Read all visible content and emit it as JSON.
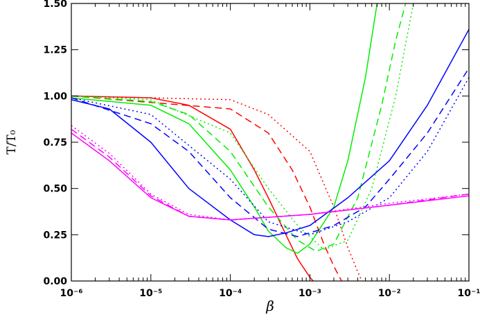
{
  "chart_data": {
    "type": "line",
    "x_label": "β",
    "y_label": "T/T₀",
    "xscale": "log",
    "xlim": [
      1e-06,
      0.1
    ],
    "ylim": [
      0,
      1.5
    ],
    "xticks": [
      {
        "value": 1e-06,
        "label": "10⁻⁶"
      },
      {
        "value": 1e-05,
        "label": "10⁻⁵"
      },
      {
        "value": 0.0001,
        "label": "10⁻⁴"
      },
      {
        "value": 0.001,
        "label": "10⁻³"
      },
      {
        "value": 0.01,
        "label": "10⁻²"
      },
      {
        "value": 0.1,
        "label": "10⁻¹"
      }
    ],
    "yticks": [
      {
        "value": 0,
        "label": "0.00"
      },
      {
        "value": 0.25,
        "label": "0.25"
      },
      {
        "value": 0.5,
        "label": "0.50"
      },
      {
        "value": 0.75,
        "label": "0.75"
      },
      {
        "value": 1,
        "label": "1.00"
      },
      {
        "value": 1.25,
        "label": "1.25"
      },
      {
        "value": 1.5,
        "label": "1.50"
      }
    ],
    "series": [
      {
        "color": "#ff0000",
        "dash": "solid",
        "x": [
          1e-06,
          1e-05,
          3e-05,
          0.0001,
          0.0002,
          0.0003,
          0.0005,
          0.0007,
          0.001,
          0.0011
        ],
        "values": [
          1.0,
          0.99,
          0.95,
          0.82,
          0.6,
          0.45,
          0.25,
          0.12,
          0.02,
          0
        ]
      },
      {
        "color": "#ff0000",
        "dash": "dashed",
        "x": [
          1e-06,
          0.0001,
          0.0003,
          0.0006,
          0.001,
          0.0015,
          0.002,
          0.0025
        ],
        "values": [
          1.0,
          0.93,
          0.8,
          0.6,
          0.4,
          0.2,
          0.08,
          0
        ]
      },
      {
        "color": "#ff0000",
        "dash": "dotted",
        "x": [
          1e-06,
          0.0001,
          0.0003,
          0.001,
          0.002,
          0.003,
          0.004,
          0.0045
        ],
        "values": [
          1.0,
          0.98,
          0.9,
          0.7,
          0.4,
          0.18,
          0.05,
          0
        ]
      },
      {
        "color": "#00ee00",
        "dash": "solid",
        "x": [
          1e-06,
          1e-05,
          3e-05,
          0.0001,
          0.0002,
          0.0003,
          0.0005,
          0.0007,
          0.001,
          0.002,
          0.003,
          0.005,
          0.007
        ],
        "values": [
          0.99,
          0.95,
          0.85,
          0.6,
          0.4,
          0.27,
          0.18,
          0.15,
          0.2,
          0.4,
          0.65,
          1.1,
          1.5
        ]
      },
      {
        "color": "#00ee00",
        "dash": "dashed",
        "x": [
          1e-06,
          1e-05,
          3e-05,
          0.0001,
          0.0003,
          0.0007,
          0.0012,
          0.002,
          0.004,
          0.008,
          0.012,
          0.016
        ],
        "values": [
          1.0,
          0.97,
          0.9,
          0.7,
          0.4,
          0.22,
          0.16,
          0.2,
          0.45,
          0.95,
          1.3,
          1.5
        ]
      },
      {
        "color": "#00ee00",
        "dash": "dotted",
        "x": [
          1e-06,
          1e-05,
          0.0001,
          0.0003,
          0.0007,
          0.0015,
          0.003,
          0.006,
          0.012,
          0.02
        ],
        "values": [
          1.0,
          0.98,
          0.8,
          0.5,
          0.3,
          0.17,
          0.22,
          0.5,
          1.0,
          1.5
        ]
      },
      {
        "color": "#0000ff",
        "dash": "solid",
        "x": [
          1e-06,
          3e-06,
          1e-05,
          3e-05,
          0.0001,
          0.0002,
          0.0003,
          0.0005,
          0.001,
          0.003,
          0.01,
          0.03,
          0.1
        ],
        "values": [
          0.98,
          0.93,
          0.75,
          0.5,
          0.33,
          0.25,
          0.24,
          0.26,
          0.3,
          0.45,
          0.65,
          0.95,
          1.36
        ]
      },
      {
        "color": "#0000ff",
        "dash": "dashed",
        "x": [
          1e-06,
          1e-05,
          3e-05,
          0.0001,
          0.0003,
          0.0007,
          0.002,
          0.005,
          0.01,
          0.03,
          0.1
        ],
        "values": [
          0.99,
          0.85,
          0.7,
          0.45,
          0.28,
          0.24,
          0.3,
          0.4,
          0.55,
          0.8,
          1.15
        ]
      },
      {
        "color": "#0000ff",
        "dash": "dotted",
        "x": [
          1e-06,
          1e-05,
          0.0001,
          0.0003,
          0.001,
          0.003,
          0.01,
          0.03,
          0.1
        ],
        "values": [
          0.99,
          0.9,
          0.55,
          0.32,
          0.25,
          0.32,
          0.45,
          0.7,
          1.1
        ]
      },
      {
        "color": "#ff00ff",
        "dash": "solid",
        "x": [
          1e-06,
          3e-06,
          1e-05,
          3e-05,
          0.0001,
          0.001,
          0.01,
          0.1
        ],
        "values": [
          0.8,
          0.65,
          0.45,
          0.35,
          0.33,
          0.36,
          0.41,
          0.46
        ]
      },
      {
        "color": "#ff00ff",
        "dash": "dashed",
        "x": [
          1e-06,
          3e-06,
          1e-05,
          3e-05,
          0.0001,
          0.001,
          0.01,
          0.1
        ],
        "values": [
          0.82,
          0.67,
          0.46,
          0.35,
          0.33,
          0.36,
          0.41,
          0.47
        ]
      },
      {
        "color": "#ff00ff",
        "dash": "dotted",
        "x": [
          1e-06,
          3e-06,
          1e-05,
          3e-05,
          0.0001,
          0.001,
          0.01,
          0.1
        ],
        "values": [
          0.84,
          0.69,
          0.47,
          0.36,
          0.33,
          0.36,
          0.42,
          0.47
        ]
      }
    ]
  }
}
